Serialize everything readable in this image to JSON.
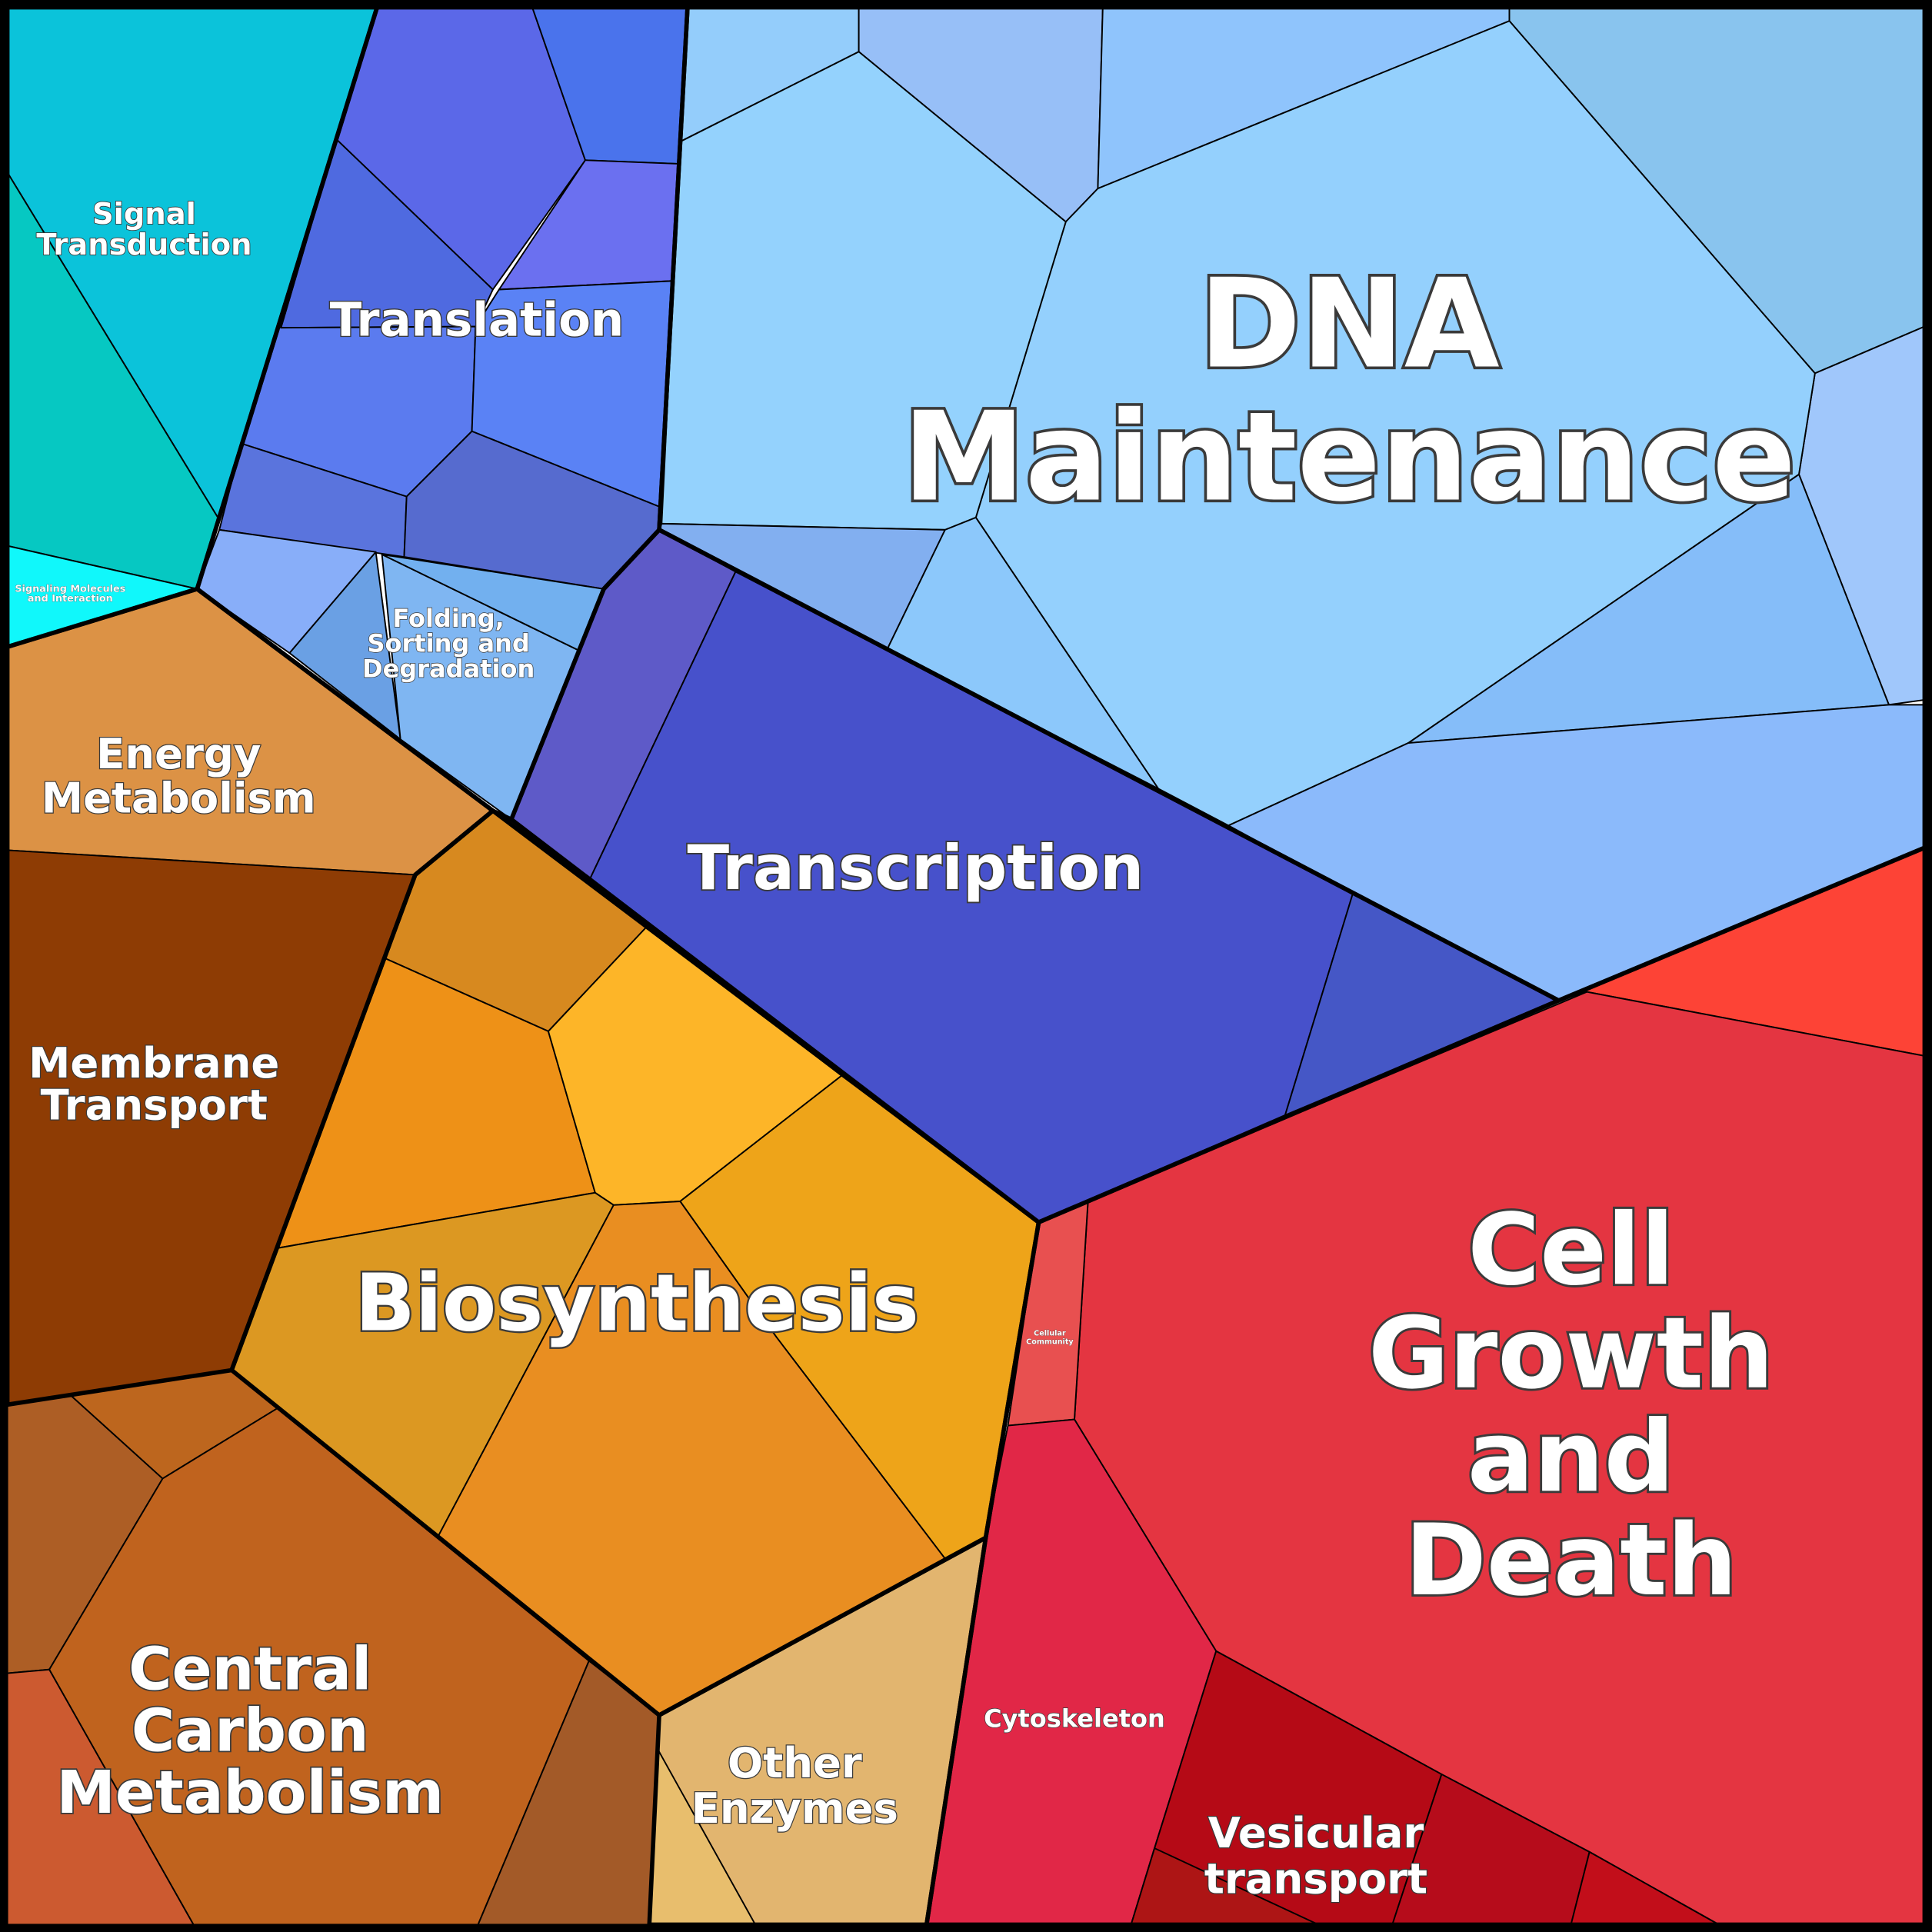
{
  "labels": [
    {
      "lines": [
        "Signal",
        "Transduction"
      ]
    },
    {
      "lines": [
        "Signaling Molecules",
        "and Interaction"
      ]
    },
    {
      "lines": [
        "Translation"
      ]
    },
    {
      "lines": [
        "Folding,",
        "Sorting and",
        "Degradation"
      ]
    },
    {
      "lines": [
        "DNA",
        "Maintenance"
      ]
    },
    {
      "lines": [
        "Energy",
        "Metabolism"
      ]
    },
    {
      "lines": [
        "Transcription"
      ]
    },
    {
      "lines": [
        "Membrane",
        "Transport"
      ]
    },
    {
      "lines": [
        "Biosynthesis"
      ]
    },
    {
      "lines": [
        "Cell",
        "Growth",
        "and",
        "Death"
      ]
    },
    {
      "lines": [
        "Cellular",
        "Community"
      ]
    },
    {
      "lines": [
        "Cytoskeleton"
      ]
    },
    {
      "lines": [
        "Central",
        "Carbon",
        "Metabolism"
      ]
    },
    {
      "lines": [
        "Other",
        "Enzymes"
      ]
    },
    {
      "lines": [
        "Vesicular",
        "transport"
      ]
    }
  ]
}
